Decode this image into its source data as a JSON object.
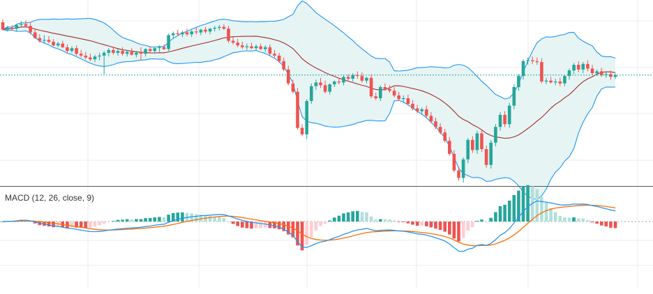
{
  "chart_data": [
    {
      "type": "candlestick",
      "title": "",
      "overlays": [
        "bollinger-bands"
      ],
      "ohlc": [
        [
          98.6,
          98.9,
          97.7,
          97.8
        ],
        [
          97.8,
          98.2,
          97.6,
          98.0
        ],
        [
          98.0,
          98.3,
          97.7,
          97.9
        ],
        [
          97.9,
          98.4,
          97.6,
          98.3
        ],
        [
          98.3,
          98.7,
          98.1,
          98.4
        ],
        [
          98.4,
          98.8,
          98.1,
          98.2
        ],
        [
          98.2,
          98.6,
          97.3,
          97.5
        ],
        [
          97.5,
          97.9,
          96.8,
          96.9
        ],
        [
          96.9,
          97.3,
          96.4,
          96.6
        ],
        [
          96.6,
          97.2,
          96.4,
          96.7
        ],
        [
          96.7,
          97.1,
          96.3,
          96.5
        ],
        [
          96.5,
          96.8,
          96.0,
          96.1
        ],
        [
          96.1,
          96.5,
          95.9,
          96.3
        ],
        [
          96.3,
          96.6,
          95.8,
          95.9
        ],
        [
          95.9,
          96.2,
          95.3,
          95.5
        ],
        [
          95.5,
          96.0,
          95.3,
          95.8
        ],
        [
          95.8,
          96.1,
          95.0,
          95.2
        ],
        [
          95.2,
          95.6,
          94.8,
          95.0
        ],
        [
          95.0,
          95.4,
          94.6,
          94.8
        ],
        [
          94.8,
          95.2,
          94.4,
          94.6
        ],
        [
          94.6,
          95.1,
          94.3,
          94.9
        ],
        [
          94.9,
          95.3,
          94.5,
          95.0
        ],
        [
          95.0,
          95.5,
          93.0,
          95.3
        ],
        [
          95.3,
          95.8,
          94.9,
          95.6
        ],
        [
          95.6,
          96.0,
          95.1,
          95.3
        ],
        [
          95.3,
          95.7,
          95.0,
          95.5
        ],
        [
          95.5,
          95.9,
          95.0,
          95.2
        ],
        [
          95.2,
          95.6,
          94.9,
          95.4
        ],
        [
          95.4,
          95.8,
          95.0,
          95.1
        ],
        [
          95.1,
          95.5,
          94.8,
          95.3
        ],
        [
          95.3,
          95.9,
          94.5,
          95.2
        ],
        [
          95.2,
          95.8,
          94.9,
          95.7
        ],
        [
          95.7,
          96.0,
          95.3,
          95.5
        ],
        [
          95.5,
          95.9,
          95.2,
          95.8
        ],
        [
          95.8,
          96.1,
          95.4,
          95.9
        ],
        [
          95.9,
          96.2,
          95.6,
          95.7
        ],
        [
          95.7,
          97.4,
          95.5,
          97.2
        ],
        [
          97.2,
          97.6,
          96.8,
          97.4
        ],
        [
          97.4,
          97.8,
          97.1,
          97.3
        ],
        [
          97.3,
          97.7,
          97.0,
          97.5
        ],
        [
          97.5,
          97.9,
          97.1,
          97.3
        ],
        [
          97.3,
          97.8,
          97.0,
          97.6
        ],
        [
          97.6,
          98.0,
          97.3,
          97.5
        ],
        [
          97.5,
          97.9,
          97.2,
          97.8
        ],
        [
          97.8,
          98.1,
          97.4,
          97.6
        ],
        [
          97.6,
          98.0,
          97.3,
          97.9
        ],
        [
          97.9,
          98.2,
          97.6,
          98.0
        ],
        [
          98.0,
          98.3,
          97.7,
          98.1
        ],
        [
          98.1,
          98.4,
          97.8,
          97.9
        ],
        [
          97.9,
          98.2,
          96.4,
          96.6
        ],
        [
          96.6,
          97.0,
          96.2,
          96.4
        ],
        [
          96.4,
          96.8,
          95.9,
          96.1
        ],
        [
          96.1,
          96.5,
          95.7,
          95.9
        ],
        [
          95.9,
          96.3,
          95.6,
          96.0
        ],
        [
          96.0,
          96.4,
          95.7,
          95.8
        ],
        [
          95.8,
          96.2,
          95.5,
          96.0
        ],
        [
          96.0,
          96.3,
          95.6,
          95.7
        ],
        [
          95.7,
          96.1,
          95.4,
          95.9
        ],
        [
          95.9,
          96.2,
          95.0,
          95.2
        ],
        [
          95.2,
          95.6,
          94.8,
          95.0
        ],
        [
          95.0,
          95.3,
          94.2,
          94.4
        ],
        [
          94.4,
          94.8,
          93.3,
          93.5
        ],
        [
          93.5,
          93.9,
          91.8,
          92.0
        ],
        [
          92.0,
          92.4,
          90.9,
          91.1
        ],
        [
          91.1,
          91.5,
          87.0,
          87.2
        ],
        [
          87.2,
          87.6,
          86.3,
          86.5
        ],
        [
          86.5,
          90.3,
          86.0,
          90.1
        ],
        [
          90.1,
          92.0,
          89.8,
          91.7
        ],
        [
          91.7,
          92.4,
          91.3,
          92.1
        ],
        [
          92.1,
          92.6,
          91.5,
          91.8
        ],
        [
          91.8,
          92.3,
          90.9,
          91.1
        ],
        [
          91.1,
          92.0,
          90.8,
          91.9
        ],
        [
          91.9,
          92.3,
          91.6,
          92.2
        ],
        [
          92.2,
          92.6,
          91.9,
          92.1
        ],
        [
          92.1,
          92.9,
          91.8,
          92.7
        ],
        [
          92.7,
          93.0,
          92.3,
          92.5
        ],
        [
          92.5,
          93.1,
          92.2,
          92.9
        ],
        [
          92.9,
          93.3,
          92.5,
          92.8
        ],
        [
          92.8,
          93.2,
          92.1,
          92.3
        ],
        [
          92.3,
          92.7,
          92.0,
          92.6
        ],
        [
          92.6,
          93.0,
          90.4,
          90.6
        ],
        [
          90.6,
          91.0,
          90.2,
          90.4
        ],
        [
          90.4,
          91.8,
          90.1,
          91.6
        ],
        [
          91.6,
          92.0,
          91.2,
          91.4
        ],
        [
          91.4,
          91.8,
          91.0,
          91.2
        ],
        [
          91.2,
          91.6,
          90.5,
          90.7
        ],
        [
          90.7,
          91.1,
          90.1,
          90.3
        ],
        [
          90.3,
          90.7,
          89.9,
          90.4
        ],
        [
          90.4,
          90.8,
          89.6,
          89.8
        ],
        [
          89.8,
          90.2,
          89.1,
          89.3
        ],
        [
          89.3,
          89.7,
          88.8,
          89.0
        ],
        [
          89.0,
          89.4,
          88.6,
          89.2
        ],
        [
          89.2,
          89.6,
          88.3,
          88.5
        ],
        [
          88.5,
          88.9,
          87.7,
          87.9
        ],
        [
          87.9,
          88.3,
          87.1,
          87.3
        ],
        [
          87.3,
          87.7,
          86.5,
          86.7
        ],
        [
          86.7,
          87.1,
          85.6,
          85.8
        ],
        [
          85.8,
          86.2,
          84.2,
          84.4
        ],
        [
          84.4,
          84.8,
          82.4,
          82.6
        ],
        [
          82.6,
          83.0,
          81.5,
          81.8
        ],
        [
          81.8,
          84.0,
          81.3,
          83.8
        ],
        [
          83.8,
          86.1,
          83.4,
          85.9
        ],
        [
          85.9,
          86.3,
          84.5,
          84.8
        ],
        [
          84.8,
          86.9,
          84.4,
          86.6
        ],
        [
          86.6,
          87.0,
          84.6,
          84.9
        ],
        [
          84.9,
          85.3,
          82.9,
          83.2
        ],
        [
          83.2,
          85.9,
          82.8,
          85.6
        ],
        [
          85.6,
          87.6,
          85.2,
          87.3
        ],
        [
          87.3,
          88.9,
          86.9,
          88.6
        ],
        [
          88.6,
          89.0,
          87.3,
          87.6
        ],
        [
          87.6,
          89.9,
          87.2,
          89.6
        ],
        [
          89.6,
          91.9,
          89.2,
          91.6
        ],
        [
          91.6,
          93.0,
          91.2,
          92.8
        ],
        [
          92.8,
          94.6,
          92.4,
          94.4
        ],
        [
          94.4,
          94.8,
          94.0,
          94.5
        ],
        [
          94.5,
          94.9,
          94.1,
          94.4
        ],
        [
          94.4,
          94.8,
          94.0,
          94.3
        ],
        [
          94.3,
          94.7,
          92.0,
          92.2
        ],
        [
          92.2,
          92.6,
          91.9,
          92.3
        ],
        [
          92.3,
          92.7,
          92.0,
          92.1
        ],
        [
          92.1,
          92.5,
          91.8,
          92.2
        ],
        [
          92.2,
          92.6,
          91.7,
          92.0
        ],
        [
          92.0,
          92.9,
          91.7,
          92.8
        ],
        [
          92.8,
          93.6,
          92.4,
          93.4
        ],
        [
          93.4,
          94.2,
          93.0,
          94.0
        ],
        [
          94.0,
          94.4,
          93.2,
          93.5
        ],
        [
          93.5,
          94.3,
          93.1,
          94.1
        ],
        [
          94.1,
          94.5,
          93.3,
          93.6
        ],
        [
          93.6,
          94.0,
          92.9,
          93.1
        ],
        [
          93.1,
          93.5,
          92.8,
          93.3
        ],
        [
          93.3,
          93.7,
          92.7,
          92.9
        ],
        [
          92.9,
          93.3,
          92.6,
          93.0
        ],
        [
          93.0,
          93.4,
          92.4,
          92.7
        ],
        [
          92.7,
          93.1,
          92.5,
          92.9
        ]
      ],
      "bollinger": {
        "period": 20,
        "stddev": 2
      },
      "ylim": [
        81,
        101
      ],
      "colors": {
        "up": "#26a69a",
        "down": "#ef5350",
        "middle_band": "#a52a2a",
        "bands": "#2196f3",
        "band_fill": "#e6f4f4",
        "price_line": "#26a69a",
        "grid": "#e8ecef"
      },
      "grid": true
    },
    {
      "type": "macd",
      "title": "MACD (12, 26, close, 9)",
      "series": [
        {
          "name": "macd",
          "color": "#2196f3"
        },
        {
          "name": "signal",
          "color": "#ff6d00"
        },
        {
          "name": "histogram",
          "colors": {
            "rise_pos": "#26a69a",
            "fall_pos": "#b2dfdb",
            "fall_neg": "#ef5350",
            "rise_neg": "#ffcdd2"
          }
        }
      ],
      "params": {
        "fast": 12,
        "slow": 26,
        "source": "close",
        "signal": 9
      },
      "grid": true
    }
  ]
}
